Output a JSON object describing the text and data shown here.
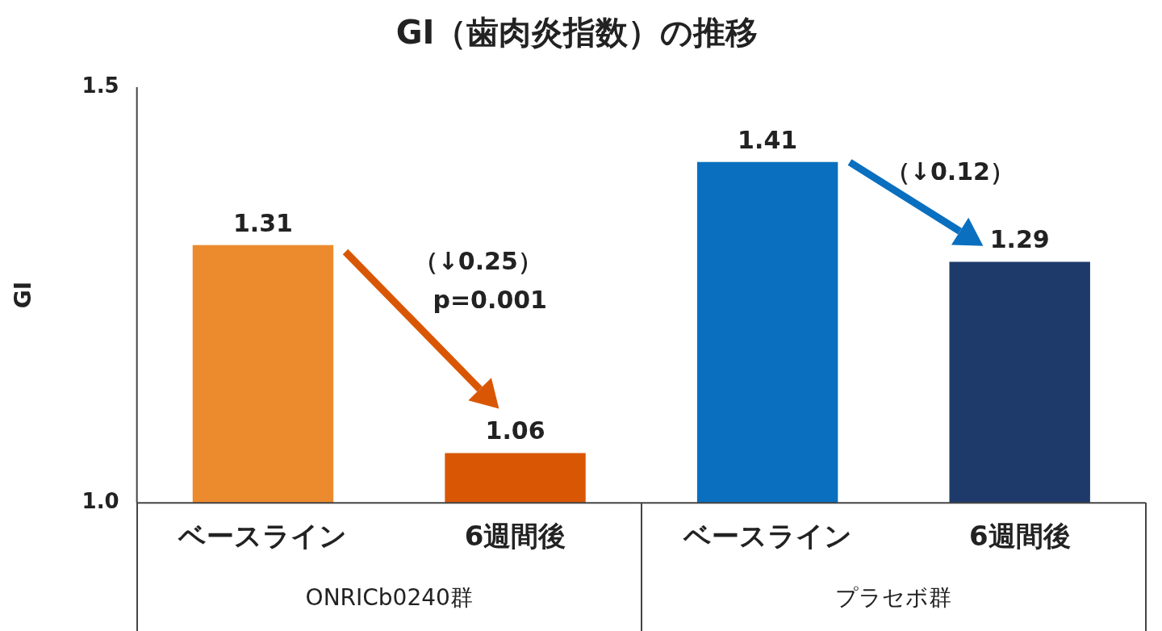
{
  "chart_data": {
    "type": "bar",
    "title": "GI（歯肉炎指数）の推移",
    "ylabel": "GI",
    "categories": [
      "ベースライン",
      "6週間後",
      "ベースライン",
      "6週間後"
    ],
    "values": [
      1.31,
      1.06,
      1.41,
      1.29
    ],
    "colors": [
      "#ec8a2e",
      "#d95704",
      "#0a6fbf",
      "#1e3a6b"
    ],
    "ylim": [
      1.0,
      1.5
    ],
    "yticks": [
      {
        "value": 1.0,
        "label": "1.0"
      },
      {
        "value": 1.5,
        "label": "1.5"
      }
    ],
    "data_labels": true,
    "grid": false,
    "legend": false,
    "annotations": [
      "（↓0.25）",
      "p=0.001",
      "（↓0.12）",
      "ONRICb0240群",
      "プラセボ群"
    ]
  }
}
